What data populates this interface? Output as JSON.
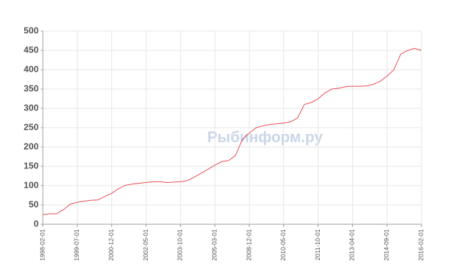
{
  "chart_data": {
    "type": "line",
    "watermark": "Рыбинформ.ру",
    "categories": [
      "1998-02-01",
      null,
      null,
      null,
      null,
      "1999-07-01",
      null,
      null,
      null,
      null,
      "2000-12-01",
      null,
      null,
      null,
      null,
      "2002-05-01",
      null,
      null,
      null,
      null,
      "2003-10-01",
      null,
      null,
      null,
      null,
      "2005-03-01",
      null,
      null,
      null,
      null,
      "2008-12-01",
      null,
      null,
      null,
      null,
      "2010-05-01",
      null,
      null,
      null,
      null,
      "2011-10-01",
      null,
      null,
      null,
      null,
      "2013-04-01",
      null,
      null,
      null,
      null,
      "2014-09-01",
      null,
      null,
      null,
      null,
      "2016-02-01"
    ],
    "series": [
      {
        "color": "#e8434f",
        "values": [
          25,
          27,
          27,
          38,
          52,
          57,
          60,
          62,
          63,
          72,
          80,
          92,
          101,
          104,
          106,
          108,
          110,
          110,
          108,
          109,
          110,
          113,
          122,
          132,
          142,
          153,
          162,
          165,
          178,
          220,
          236,
          250,
          255,
          258,
          260,
          262,
          265,
          275,
          310,
          315,
          325,
          340,
          350,
          352,
          356,
          357,
          357,
          358,
          362,
          370,
          383,
          400,
          440,
          450,
          455,
          450
        ]
      }
    ],
    "ylim": [
      0,
      500
    ],
    "yticks": [
      0,
      50,
      100,
      150,
      200,
      250,
      300,
      350,
      400,
      450,
      500
    ],
    "grid": true
  }
}
